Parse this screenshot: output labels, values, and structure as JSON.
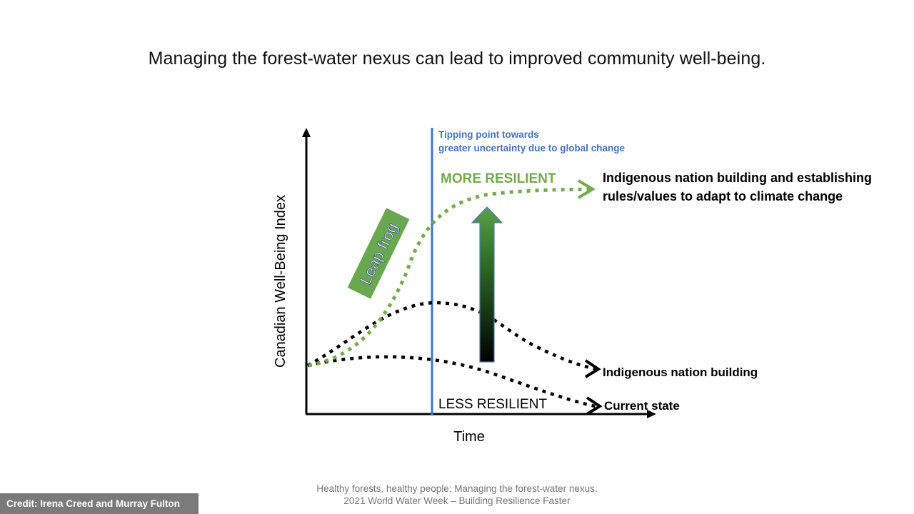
{
  "slide": {
    "title": "Managing the forest-water nexus can lead to improved community well-being."
  },
  "diagram": {
    "y_axis_label": "Canadian Well-Being Index",
    "x_axis_label": "Time",
    "tipping_point_line1": "Tipping point towards",
    "tipping_point_line2": "greater uncertainty due to global change",
    "more_resilient": "MORE RESILIENT",
    "less_resilient": "LESS RESILIENT",
    "leap_frog": "Leap frog",
    "curves": {
      "top_line1": "Indigenous nation building and establishing",
      "top_line2": "rules/values to adapt to climate change",
      "middle": "Indigenous nation building",
      "bottom": "Current state"
    },
    "colors": {
      "green": "#70ad47",
      "blue": "#4472c4",
      "green_box": "#6aa84f",
      "black": "#000000"
    }
  },
  "footer": {
    "line1": "Healthy forests, healthy people: Managing the forest-water nexus.",
    "line2": "2021 World Water Week – Building Resilience Faster"
  },
  "credit": "Credit: Irena Creed and Murray Fulton"
}
